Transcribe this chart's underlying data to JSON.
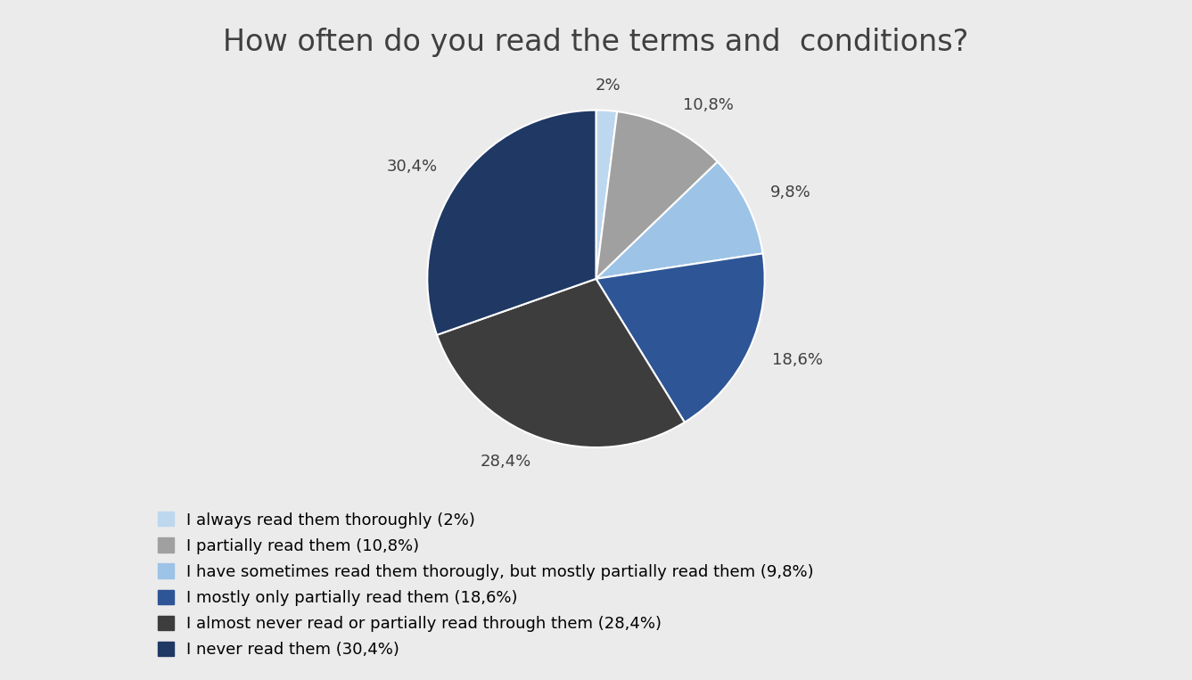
{
  "title": "How often do you read the terms and  conditions?",
  "values": [
    2.0,
    10.8,
    9.8,
    18.6,
    28.4,
    30.4
  ],
  "labels": [
    "2%",
    "10,8%",
    "9,8%",
    "18,6%",
    "28,4%",
    "30,4%"
  ],
  "colors": [
    "#bdd7ee",
    "#a0a0a0",
    "#9dc3e6",
    "#2e5596",
    "#3d3d3d",
    "#1f3864"
  ],
  "legend_labels": [
    "I always read them thoroughly (2%)",
    "I partially read them (10,8%)",
    "I have sometimes read them thorougly, but mostly partially read them (9,8%)",
    "I mostly only partially read them (18,6%)",
    "I almost never read or partially read through them (28,4%)",
    "I never read them (30,4%)"
  ],
  "background_color": "#ebebeb",
  "title_fontsize": 24,
  "label_fontsize": 13,
  "legend_fontsize": 13
}
